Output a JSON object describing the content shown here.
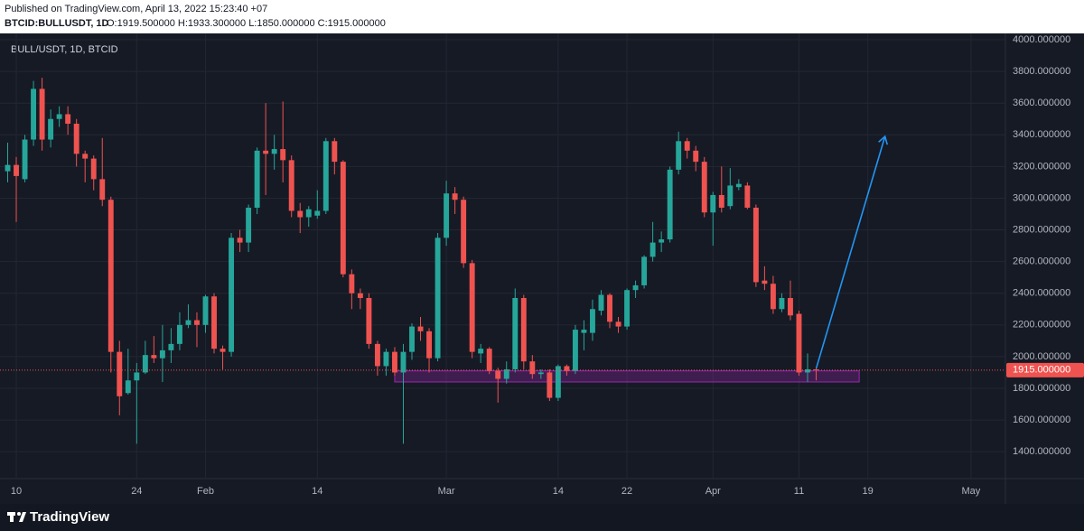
{
  "header": {
    "published": "Published on TradingView.com, April 13, 2022 15:23:40 +07",
    "symbol": "BTCID:BULLUSDT, 1D",
    "ohlc": "O:1919.500000 H:1933.300000 L:1850.000000 C:1915.000000"
  },
  "footer": {
    "logo": "TradingView"
  },
  "chart_data": {
    "type": "candlestick",
    "legend_label": "BULL/USDT, 1D, BTCID",
    "x": [
      "2022-01-09",
      "2022-01-10",
      "2022-01-11",
      "2022-01-12",
      "2022-01-13",
      "2022-01-14",
      "2022-01-15",
      "2022-01-16",
      "2022-01-17",
      "2022-01-18",
      "2022-01-19",
      "2022-01-20",
      "2022-01-21",
      "2022-01-22",
      "2022-01-23",
      "2022-01-24",
      "2022-01-25",
      "2022-01-26",
      "2022-01-27",
      "2022-01-28",
      "2022-01-29",
      "2022-01-30",
      "2022-01-31",
      "2022-02-01",
      "2022-02-02",
      "2022-02-03",
      "2022-02-04",
      "2022-02-05",
      "2022-02-06",
      "2022-02-07",
      "2022-02-08",
      "2022-02-09",
      "2022-02-10",
      "2022-02-11",
      "2022-02-12",
      "2022-02-13",
      "2022-02-14",
      "2022-02-15",
      "2022-02-16",
      "2022-02-17",
      "2022-02-18",
      "2022-02-19",
      "2022-02-20",
      "2022-02-21",
      "2022-02-22",
      "2022-02-23",
      "2022-02-24",
      "2022-02-25",
      "2022-02-26",
      "2022-02-27",
      "2022-02-28",
      "2022-03-01",
      "2022-03-02",
      "2022-03-03",
      "2022-03-04",
      "2022-03-05",
      "2022-03-06",
      "2022-03-07",
      "2022-03-08",
      "2022-03-09",
      "2022-03-10",
      "2022-03-11",
      "2022-03-12",
      "2022-03-13",
      "2022-03-14",
      "2022-03-15",
      "2022-03-16",
      "2022-03-17",
      "2022-03-18",
      "2022-03-19",
      "2022-03-20",
      "2022-03-21",
      "2022-03-22",
      "2022-03-23",
      "2022-03-24",
      "2022-03-25",
      "2022-03-26",
      "2022-03-27",
      "2022-03-28",
      "2022-03-29",
      "2022-03-30",
      "2022-03-31",
      "2022-04-01",
      "2022-04-02",
      "2022-04-03",
      "2022-04-04",
      "2022-04-05",
      "2022-04-06",
      "2022-04-07",
      "2022-04-08",
      "2022-04-09",
      "2022-04-10",
      "2022-04-11",
      "2022-04-12",
      "2022-04-13"
    ],
    "open": [
      3170,
      3210,
      3120,
      3370,
      3690,
      3370,
      3500,
      3530,
      3470,
      3280,
      3250,
      3120,
      2990,
      2030,
      1770,
      1850,
      1900,
      2010,
      1990,
      2040,
      2080,
      2200,
      2230,
      2200,
      2380,
      2050,
      2030,
      2750,
      2720,
      2940,
      3300,
      3280,
      3310,
      3240,
      2920,
      2880,
      2890,
      2920,
      3360,
      3230,
      2520,
      2400,
      2370,
      2080,
      1940,
      2030,
      1900,
      2030,
      2190,
      2160,
      1990,
      2750,
      3030,
      2990,
      2590,
      2020,
      2050,
      1910,
      1860,
      1920,
      2370,
      1970,
      1890,
      1900,
      1740,
      1940,
      1910,
      2150,
      2150,
      2290,
      2390,
      2220,
      2190,
      2420,
      2450,
      2630,
      2720,
      2740,
      3180,
      3360,
      3300,
      3230,
      2910,
      3020,
      2950,
      3070,
      3080,
      2940,
      2480,
      2460,
      2300,
      2370,
      2270,
      1900,
      1919.5
    ],
    "high": [
      3350,
      3260,
      3400,
      3740,
      3760,
      3560,
      3580,
      3580,
      3500,
      3300,
      3270,
      3380,
      3010,
      2100,
      2050,
      1960,
      2100,
      2130,
      2200,
      2180,
      2280,
      2330,
      2280,
      2390,
      2400,
      2070,
      2780,
      2800,
      2960,
      3320,
      3600,
      3400,
      3610,
      3270,
      2970,
      2950,
      3050,
      3380,
      3380,
      3240,
      2550,
      2430,
      2400,
      2100,
      2050,
      2060,
      2080,
      2210,
      2250,
      2180,
      2780,
      3110,
      3070,
      3010,
      2610,
      2080,
      2060,
      1930,
      1970,
      2430,
      2390,
      2010,
      1920,
      1920,
      1950,
      1950,
      2200,
      2230,
      2360,
      2420,
      2400,
      2250,
      2430,
      2480,
      2640,
      2850,
      2790,
      3200,
      3420,
      3380,
      3330,
      3260,
      3040,
      3200,
      3190,
      3120,
      3100,
      2960,
      2570,
      2510,
      2400,
      2480,
      2290,
      2020,
      1933.3
    ],
    "low": [
      3100,
      2850,
      3100,
      3330,
      3300,
      3320,
      3450,
      3400,
      3200,
      3100,
      3050,
      2950,
      1900,
      1630,
      1760,
      1450,
      1890,
      1960,
      1840,
      1960,
      2040,
      2180,
      2060,
      2150,
      2020,
      1920,
      2000,
      2660,
      2660,
      2900,
      3020,
      3180,
      3100,
      2880,
      2780,
      2820,
      2870,
      2900,
      3150,
      2500,
      2300,
      2300,
      2050,
      1880,
      1880,
      1880,
      1450,
      1980,
      2100,
      1900,
      1970,
      2700,
      2900,
      2560,
      1990,
      1960,
      1890,
      1710,
      1830,
      1900,
      1920,
      1860,
      1860,
      1720,
      1720,
      1880,
      1890,
      2040,
      2100,
      2260,
      2180,
      2150,
      2170,
      2370,
      2430,
      2600,
      2660,
      2720,
      3150,
      3250,
      3170,
      2880,
      2700,
      2910,
      2930,
      3050,
      2930,
      2440,
      2420,
      2270,
      2280,
      2230,
      1880,
      1840,
      1850
    ],
    "close": [
      3210,
      3140,
      3370,
      3690,
      3370,
      3500,
      3530,
      3470,
      3280,
      3250,
      3120,
      2990,
      2030,
      1750,
      1850,
      1900,
      2010,
      1990,
      2040,
      2080,
      2200,
      2230,
      2200,
      2380,
      2050,
      2030,
      2750,
      2720,
      2940,
      3300,
      3280,
      3310,
      3240,
      2920,
      2880,
      2930,
      2920,
      3360,
      3230,
      2520,
      2400,
      2370,
      2080,
      1940,
      2030,
      1900,
      2030,
      2190,
      2160,
      1990,
      2750,
      3030,
      2990,
      2590,
      2030,
      2050,
      1910,
      1860,
      1920,
      2370,
      1970,
      1890,
      1900,
      1740,
      1940,
      1910,
      2170,
      2170,
      2300,
      2390,
      2220,
      2190,
      2420,
      2450,
      2630,
      2720,
      2740,
      3180,
      3360,
      3300,
      3230,
      2910,
      3020,
      2940,
      3080,
      3090,
      2940,
      2470,
      2460,
      2300,
      2370,
      2260,
      1900,
      1920,
      1915
    ],
    "last_price_label": "1915.000000",
    "up_color": "#26a69a",
    "down_color": "#ef5350",
    "xlim": [
      "2022-01-09",
      "2022-05-05"
    ],
    "xticks": [
      {
        "value": "2022-01-10",
        "label": "10"
      },
      {
        "value": "2022-01-24",
        "label": "24"
      },
      {
        "value": "2022-02-01",
        "label": "Feb"
      },
      {
        "value": "2022-02-14",
        "label": "14"
      },
      {
        "value": "2022-03-01",
        "label": "Mar"
      },
      {
        "value": "2022-03-14",
        "label": "14"
      },
      {
        "value": "2022-03-22",
        "label": "22"
      },
      {
        "value": "2022-04-01",
        "label": "Apr"
      },
      {
        "value": "2022-04-11",
        "label": "11"
      },
      {
        "value": "2022-04-19",
        "label": "19"
      },
      {
        "value": "2022-05-01",
        "label": "May"
      }
    ],
    "ylim": [
      1230,
      4040
    ],
    "yticks": [
      {
        "value": 1400,
        "label": "1400.000000"
      },
      {
        "value": 1600,
        "label": "1600.000000"
      },
      {
        "value": 1800,
        "label": "1800.000000"
      },
      {
        "value": 2000,
        "label": "2000.000000"
      },
      {
        "value": 2200,
        "label": "2200.000000"
      },
      {
        "value": 2400,
        "label": "2400.000000"
      },
      {
        "value": 2600,
        "label": "2600.000000"
      },
      {
        "value": 2800,
        "label": "2800.000000"
      },
      {
        "value": 3000,
        "label": "3000.000000"
      },
      {
        "value": 3200,
        "label": "3200.000000"
      },
      {
        "value": 3400,
        "label": "3400.000000"
      },
      {
        "value": 3600,
        "label": "3600.000000"
      },
      {
        "value": 3800,
        "label": "3800.000000"
      },
      {
        "value": 4000,
        "label": "4000.000000"
      }
    ],
    "grid": true,
    "zone": {
      "x": [
        "2022-02-23",
        "2022-04-18"
      ],
      "y": [
        1840,
        1910
      ],
      "color": "#9c27b0"
    },
    "arrow": {
      "x": [
        "2022-04-13",
        "2022-04-21"
      ],
      "y": [
        1925,
        3390
      ],
      "color": "#2196f3"
    }
  }
}
